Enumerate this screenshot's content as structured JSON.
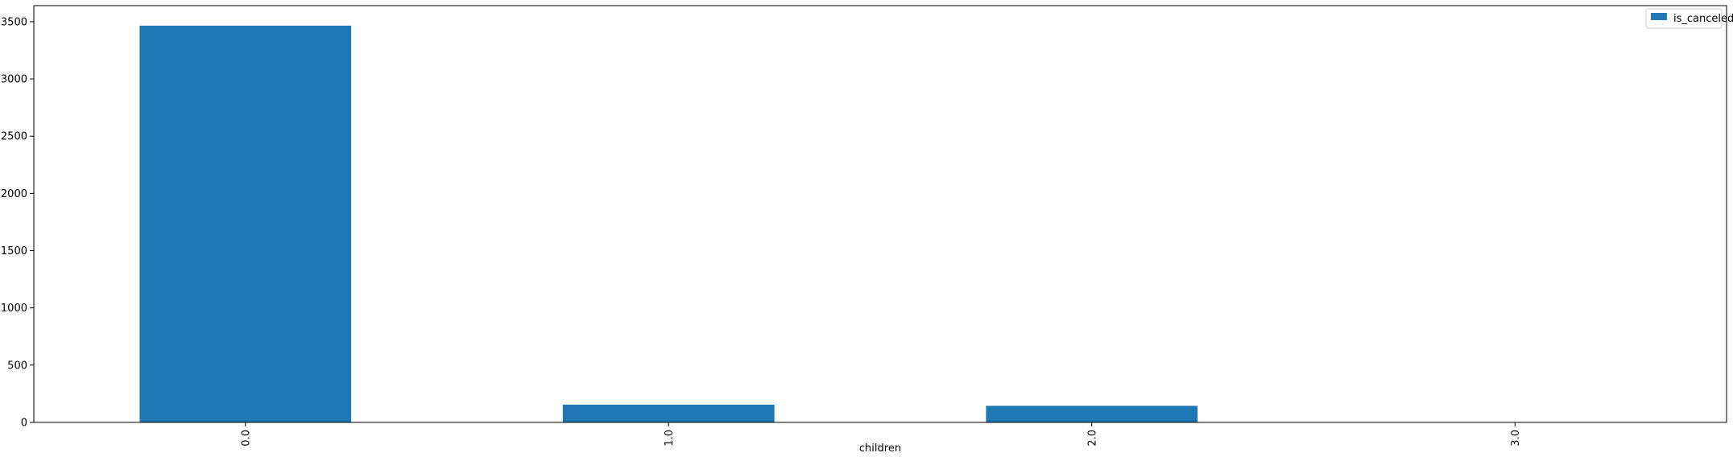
{
  "chart_data": {
    "type": "bar",
    "categories": [
      "0.0",
      "1.0",
      "2.0",
      "3.0"
    ],
    "series": [
      {
        "name": "is_canceled",
        "values": [
          3465,
          155,
          145,
          2
        ]
      }
    ],
    "xlabel": "children",
    "ylabel": "",
    "ylim": [
      0,
      3640
    ],
    "yticks": [
      0,
      500,
      1000,
      1500,
      2000,
      2500,
      3000,
      3500
    ],
    "bar_color": "#1f77b4",
    "legend_position": "top-right",
    "grid": false,
    "xtick_rotation": "vertical"
  }
}
